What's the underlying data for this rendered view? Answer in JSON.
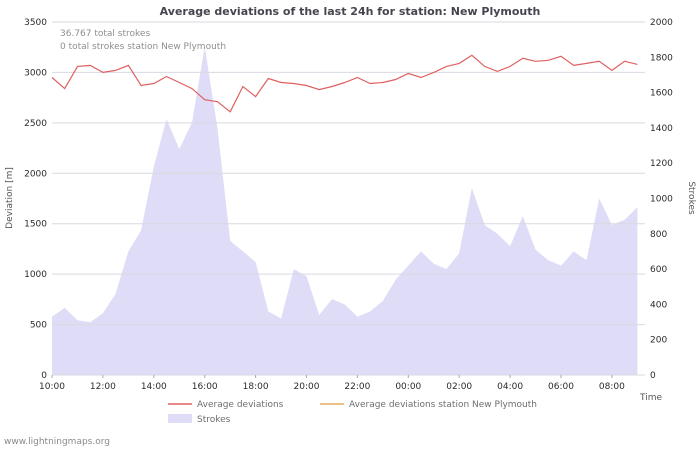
{
  "title": "Average deviations of the last 24h for station: New Plymouth",
  "annotations": {
    "total_strokes": "36.767 total strokes",
    "station_strokes": "0 total strokes station New Plymouth"
  },
  "axes": {
    "left_label": "Deviation [m]",
    "right_label": "Strokes",
    "x_label": "Time"
  },
  "legend": {
    "avg_deviations": "Average deviations",
    "avg_deviations_station": "Average deviations station New Plymouth",
    "strokes": "Strokes"
  },
  "watermark": "www.lightningmaps.org",
  "colors": {
    "avg_line": "#e06060",
    "station_line": "#e8a860",
    "strokes_area": "#dedcf6",
    "grid": "#d9d9e2"
  },
  "chart_data": {
    "type": "line",
    "title": "Average deviations of the last 24h for station: New Plymouth",
    "xlabel": "Time",
    "ylabel_left": "Deviation [m]",
    "ylabel_right": "Strokes",
    "xlim": [
      0,
      23.3
    ],
    "ylim_left": [
      0,
      3500
    ],
    "ylim_right": [
      0,
      2000
    ],
    "grid": "horizontal",
    "legend_position": "bottom",
    "yticks_left": [
      0,
      500,
      1000,
      1500,
      2000,
      2500,
      3000,
      3500
    ],
    "yticks_right": [
      0,
      200,
      400,
      600,
      800,
      1000,
      1200,
      1400,
      1600,
      1800,
      2000
    ],
    "xtick_pos": [
      0,
      2,
      4,
      6,
      8,
      10,
      12,
      14,
      16,
      18,
      20,
      22
    ],
    "xticks": [
      "10:00",
      "12:00",
      "14:00",
      "16:00",
      "18:00",
      "20:00",
      "22:00",
      "00:00",
      "02:00",
      "04:00",
      "06:00",
      "08:00"
    ],
    "x": [
      0,
      0.5,
      1,
      1.5,
      2,
      2.5,
      3,
      3.5,
      4,
      4.5,
      5,
      5.5,
      6,
      6.5,
      7,
      7.5,
      8,
      8.5,
      9,
      9.5,
      10,
      10.5,
      11,
      11.5,
      12,
      12.5,
      13,
      13.5,
      14,
      14.5,
      15,
      15.5,
      16,
      16.5,
      17,
      17.5,
      18,
      18.5,
      19,
      19.5,
      20,
      20.5,
      21,
      21.5,
      22,
      22.5,
      23
    ],
    "series": [
      {
        "name": "Average deviations",
        "axis": "left",
        "type": "line",
        "color": "#e06060",
        "values": [
          2950,
          2840,
          3060,
          3070,
          3000,
          3020,
          3070,
          2870,
          2890,
          2960,
          2900,
          2840,
          2730,
          2710,
          2610,
          2860,
          2760,
          2940,
          2900,
          2890,
          2870,
          2830,
          2860,
          2900,
          2950,
          2890,
          2900,
          2930,
          2990,
          2950,
          3000,
          3060,
          3090,
          3170,
          3060,
          3010,
          3060,
          3140,
          3110,
          3120,
          3160,
          3070,
          3090,
          3110,
          3020,
          3110,
          3080
        ]
      },
      {
        "name": "Average deviations station New Plymouth",
        "axis": "left",
        "type": "line",
        "color": "#e8a860",
        "values": []
      },
      {
        "name": "Strokes",
        "axis": "right",
        "type": "area",
        "color": "#dedcf6",
        "values": [
          330,
          380,
          310,
          300,
          350,
          460,
          700,
          820,
          1180,
          1450,
          1280,
          1430,
          1860,
          1400,
          760,
          700,
          640,
          360,
          320,
          600,
          560,
          340,
          430,
          400,
          330,
          360,
          420,
          540,
          620,
          700,
          630,
          600,
          690,
          1060,
          850,
          800,
          730,
          900,
          710,
          650,
          620,
          700,
          650,
          1000,
          850,
          880,
          950
        ]
      }
    ]
  }
}
